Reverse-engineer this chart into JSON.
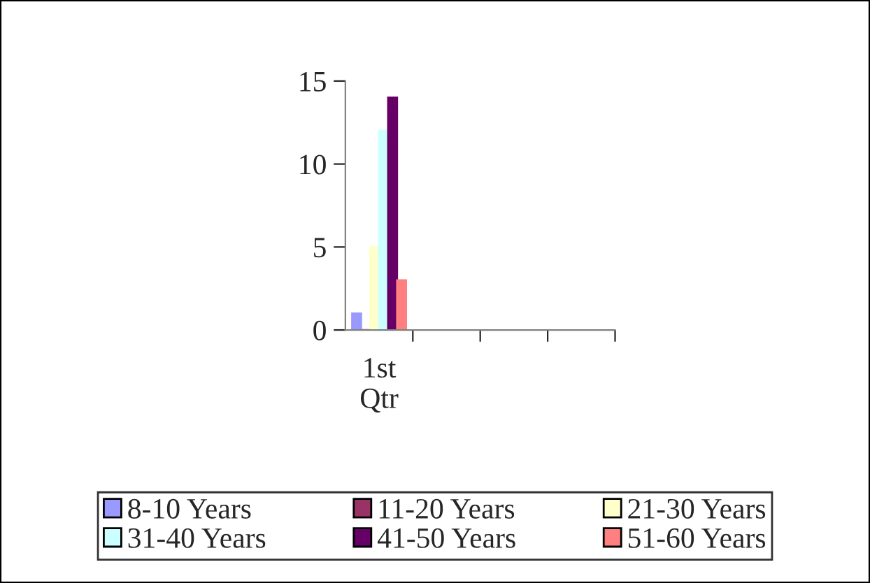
{
  "chart_data": {
    "type": "bar",
    "categories": [
      "1st Qtr",
      null,
      null,
      null
    ],
    "series": [
      {
        "name": "8-10 Years",
        "color": "#9999ff",
        "values": [
          1,
          null,
          null,
          null
        ]
      },
      {
        "name": "11-20 Years",
        "color": "#993366",
        "values": [
          0,
          null,
          null,
          null
        ]
      },
      {
        "name": "21-30 Years",
        "color": "#ffffcc",
        "values": [
          5,
          null,
          null,
          null
        ]
      },
      {
        "name": "31-40 Years",
        "color": "#ccffff",
        "values": [
          12,
          null,
          null,
          null
        ]
      },
      {
        "name": "41-50 Years",
        "color": "#660066",
        "values": [
          14,
          null,
          null,
          null
        ]
      },
      {
        "name": "51-60 Years",
        "color": "#ff8080",
        "values": [
          3,
          null,
          null,
          null
        ]
      }
    ],
    "ylim": [
      0,
      15
    ],
    "yticks": [
      0,
      5,
      10,
      15
    ],
    "grid": false,
    "legend": "bottom"
  }
}
